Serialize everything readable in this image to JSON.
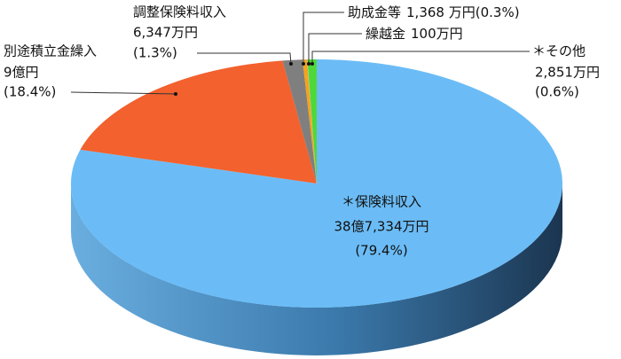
{
  "chart_data": {
    "type": "pie3d",
    "categories": [
      "＊保険料収入",
      "別途積立金繰入",
      "調整保険料収入",
      "助成金等",
      "繰越金",
      "＊その他"
    ],
    "amounts": [
      "38億7,334万円",
      "9億円",
      "6,347万円",
      "1,368 万円",
      "100万円",
      "2,851万円"
    ],
    "values": [
      79.4,
      18.4,
      1.3,
      0.3,
      0.02,
      0.6
    ],
    "value_labels": [
      "(79.4%)",
      "(18.4%)",
      "(1.3%)",
      "(0.3%)",
      null,
      "(0.6%)"
    ],
    "colors": [
      "#6bbcf6",
      "#f2612e",
      "#7f7f7f",
      "#f4a31a",
      "#ffffff",
      "#4fd83a"
    ]
  }
}
